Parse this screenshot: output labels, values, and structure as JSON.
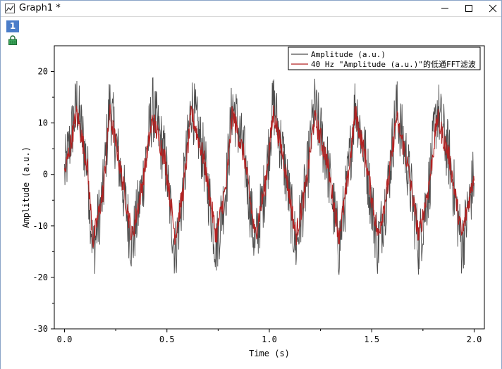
{
  "window": {
    "title": "Graph1 *",
    "layer_label": "1"
  },
  "chart_data": {
    "type": "line",
    "xlabel": "Time (s)",
    "ylabel": "Amplitude (a.u.)",
    "xlim": [
      -0.05,
      2.05
    ],
    "ylim": [
      -30,
      25
    ],
    "x_ticks": [
      0.0,
      0.5,
      1.0,
      1.5,
      2.0
    ],
    "x_tick_labels": [
      "0.0",
      "0.5",
      "1.0",
      "1.5",
      "2.0"
    ],
    "y_ticks": [
      -30,
      -20,
      -10,
      0,
      10,
      20
    ],
    "y_tick_labels": [
      "-30",
      "-20",
      "-10",
      "0",
      "10",
      "20"
    ],
    "grid": false,
    "legend_position": "top-right",
    "series": [
      {
        "name": "Amplitude (a.u.)",
        "color": "#4d4d4d",
        "x_start": 0.0,
        "x_end": 2.0,
        "approx_points": [
          [
            0.0,
            0
          ],
          [
            0.06,
            14
          ],
          [
            0.11,
            2
          ],
          [
            0.14,
            -15
          ],
          [
            0.19,
            -3
          ],
          [
            0.22,
            14
          ],
          [
            0.26,
            4
          ],
          [
            0.33,
            -14
          ],
          [
            0.38,
            -2
          ],
          [
            0.43,
            13
          ],
          [
            0.49,
            3
          ],
          [
            0.54,
            -15
          ],
          [
            0.58,
            -3
          ],
          [
            0.62,
            14
          ],
          [
            0.68,
            3
          ],
          [
            0.74,
            -14
          ],
          [
            0.79,
            -2
          ],
          [
            0.82,
            14
          ],
          [
            0.88,
            3
          ],
          [
            0.93,
            -14
          ],
          [
            0.98,
            -2
          ],
          [
            1.02,
            14
          ],
          [
            1.07,
            3
          ],
          [
            1.13,
            -14
          ],
          [
            1.18,
            -2
          ],
          [
            1.22,
            13
          ],
          [
            1.28,
            3
          ],
          [
            1.34,
            -14
          ],
          [
            1.38,
            -2
          ],
          [
            1.42,
            14
          ],
          [
            1.47,
            3
          ],
          [
            1.53,
            -14
          ],
          [
            1.58,
            -2
          ],
          [
            1.62,
            13
          ],
          [
            1.67,
            3
          ],
          [
            1.73,
            -14
          ],
          [
            1.78,
            -2
          ],
          [
            1.82,
            13
          ],
          [
            1.88,
            3
          ],
          [
            1.94,
            -14
          ],
          [
            2.0,
            0
          ]
        ]
      },
      {
        "name": "40 Hz \"Amplitude (a.u.)\"的低通FFT滤波",
        "color": "#b22222",
        "x_start": 0.0,
        "x_end": 2.0,
        "approx_points": [
          [
            0.0,
            0
          ],
          [
            0.06,
            12
          ],
          [
            0.11,
            2
          ],
          [
            0.14,
            -13
          ],
          [
            0.19,
            -3
          ],
          [
            0.22,
            12
          ],
          [
            0.26,
            4
          ],
          [
            0.33,
            -12
          ],
          [
            0.38,
            -2
          ],
          [
            0.43,
            11
          ],
          [
            0.49,
            3
          ],
          [
            0.54,
            -12
          ],
          [
            0.58,
            -3
          ],
          [
            0.62,
            12
          ],
          [
            0.68,
            3
          ],
          [
            0.74,
            -12
          ],
          [
            0.79,
            -2
          ],
          [
            0.82,
            12
          ],
          [
            0.88,
            3
          ],
          [
            0.93,
            -12
          ],
          [
            0.98,
            -2
          ],
          [
            1.02,
            12
          ],
          [
            1.07,
            3
          ],
          [
            1.13,
            -12
          ],
          [
            1.18,
            -2
          ],
          [
            1.22,
            11
          ],
          [
            1.28,
            3
          ],
          [
            1.34,
            -12
          ],
          [
            1.38,
            -2
          ],
          [
            1.42,
            12
          ],
          [
            1.47,
            3
          ],
          [
            1.53,
            -12
          ],
          [
            1.58,
            -2
          ],
          [
            1.62,
            11
          ],
          [
            1.67,
            3
          ],
          [
            1.73,
            -12
          ],
          [
            1.78,
            -2
          ],
          [
            1.82,
            11
          ],
          [
            1.88,
            3
          ],
          [
            1.94,
            -12
          ],
          [
            2.0,
            0
          ]
        ]
      }
    ]
  }
}
